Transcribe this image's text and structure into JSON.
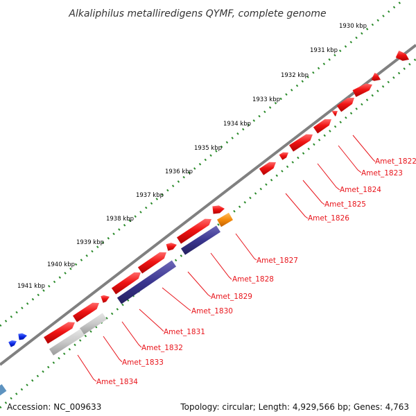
{
  "title": "Alkaliphilus metalliredigens QYMF, complete genome",
  "footer": {
    "accession": "Accession: NC_009633",
    "topology": "Topology: circular; Length: 4,929,566 bp; Genes: 4,763"
  },
  "kbp_ticks": [
    "1930 kbp",
    "1931 kbp",
    "1932 kbp",
    "1933 kbp",
    "1934 kbp",
    "1935 kbp",
    "1936 kbp",
    "1937 kbp",
    "1938 kbp",
    "1939 kbp",
    "1940 kbp",
    "1941 kbp"
  ],
  "gene_labels": [
    "Amet_1822",
    "Amet_1823",
    "Amet_1824",
    "Amet_1825",
    "Amet_1826",
    "Amet_1827",
    "Amet_1828",
    "Amet_1829",
    "Amet_1830",
    "Amet_1831",
    "Amet_1832",
    "Amet_1833",
    "Amet_1834"
  ],
  "colors": {
    "red": "#f01414",
    "navy": "#3a358f",
    "gray": "#c8c8c8",
    "orange": "#f58a0a",
    "blue": "#0a28e6",
    "steel": "#5e93c0",
    "backbone": "#808080",
    "dots": "#2a8a2a",
    "label_red": "#e8141b"
  }
}
